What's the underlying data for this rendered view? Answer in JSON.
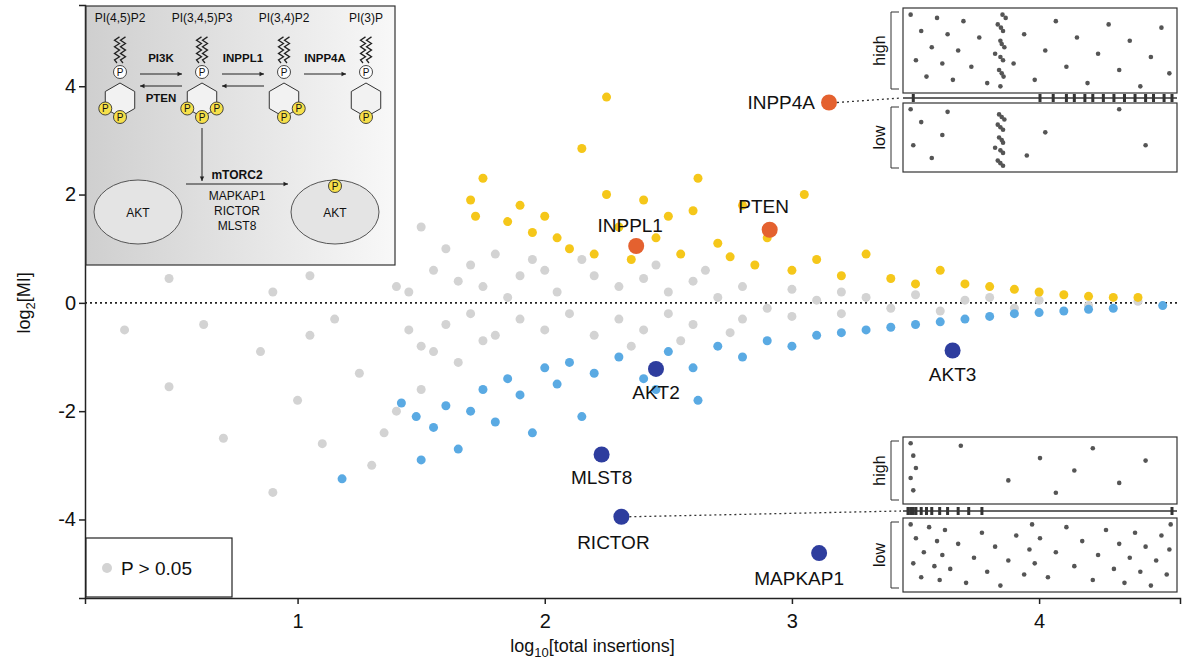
{
  "chart_data": {
    "type": "scatter",
    "x_title": [
      "log",
      "10",
      "[total insertions]"
    ],
    "y_title": [
      "log",
      "2",
      "[MI]"
    ],
    "xlim": [
      0.14,
      4.57
    ],
    "ylim": [
      -5.45,
      5.5
    ],
    "xticks": [
      1,
      2,
      3,
      4
    ],
    "yticks": [
      -4,
      -2,
      0,
      2,
      4
    ],
    "hlines": [
      0
    ],
    "legend": "bottom-left",
    "series": [
      {
        "name": "P > 0.05",
        "color": "#d3d3d3",
        "x": [
          0.3,
          0.48,
          0.48,
          0.62,
          0.7,
          0.85,
          0.9,
          1.0,
          1.05,
          1.1,
          1.15,
          1.25,
          1.3,
          1.4,
          1.45,
          1.5,
          1.5,
          1.5,
          1.55,
          1.6,
          1.6,
          1.65,
          1.7,
          1.7,
          1.75,
          1.8,
          1.8,
          1.85,
          1.9,
          1.9,
          2.0,
          2.0,
          2.05,
          2.1,
          2.2,
          2.2,
          2.3,
          2.3,
          2.4,
          2.4,
          2.5,
          2.5,
          2.6,
          2.6,
          2.7,
          2.8,
          2.8,
          2.9,
          3.0,
          3.0,
          3.1,
          3.2,
          3.2,
          3.3,
          3.4,
          3.5,
          3.6,
          3.7,
          3.8,
          3.9,
          4.0,
          4.2,
          4.4,
          1.45,
          1.55,
          1.65,
          1.75,
          1.95,
          2.15,
          2.35,
          2.45,
          2.55,
          2.65,
          2.75,
          1.05,
          0.9,
          1.35,
          1.4
        ],
        "values": [
          -0.5,
          0.45,
          -1.55,
          -0.4,
          -2.5,
          -0.9,
          -3.5,
          -1.8,
          0.5,
          -2.6,
          -0.3,
          -1.3,
          -3.0,
          -2.0,
          0.2,
          1.4,
          -0.8,
          -1.6,
          0.6,
          1.0,
          -0.4,
          -1.1,
          0.7,
          -0.2,
          0.3,
          -0.6,
          0.9,
          0.1,
          -0.3,
          0.5,
          0.6,
          -0.5,
          0.2,
          -0.2,
          0.5,
          -0.6,
          0.3,
          -0.3,
          0.45,
          -0.5,
          0.2,
          -0.2,
          0.4,
          -0.4,
          0.1,
          0.3,
          -0.3,
          -0.1,
          0.25,
          -0.25,
          0.05,
          0.2,
          -0.2,
          0.1,
          -0.1,
          0.15,
          -0.15,
          0.05,
          0.1,
          -0.1,
          0.05,
          -0.05,
          0.03,
          -0.5,
          -0.9,
          0.4,
          -0.7,
          0.8,
          0.8,
          -0.8,
          0.7,
          -0.7,
          0.6,
          -0.55,
          -0.6,
          0.2,
          -2.4,
          0.3
        ]
      },
      {
        "color": "#f5c71a",
        "x": [
          1.75,
          1.7,
          1.72,
          1.9,
          1.95,
          2.0,
          2.05,
          2.1,
          2.15,
          2.25,
          2.25,
          2.3,
          2.4,
          2.45,
          2.5,
          2.55,
          2.6,
          2.62,
          2.7,
          2.75,
          2.8,
          2.85,
          2.9,
          3.0,
          3.05,
          3.1,
          3.2,
          3.3,
          3.4,
          3.5,
          3.6,
          3.7,
          3.8,
          3.9,
          4.0,
          4.1,
          4.2,
          4.3,
          4.4,
          2.2,
          2.35,
          1.85
        ],
        "values": [
          2.3,
          1.9,
          1.6,
          1.8,
          1.3,
          1.6,
          1.2,
          1.0,
          2.85,
          2.0,
          3.8,
          1.4,
          1.9,
          1.2,
          1.6,
          0.9,
          1.7,
          2.3,
          1.1,
          0.85,
          1.8,
          0.7,
          1.2,
          0.6,
          2.0,
          0.8,
          0.5,
          0.9,
          0.45,
          0.35,
          0.6,
          0.35,
          0.3,
          0.25,
          0.2,
          0.15,
          0.12,
          0.1,
          0.1,
          0.9,
          0.8,
          1.5
        ]
      },
      {
        "color": "#5aaae3",
        "x": [
          1.18,
          1.5,
          1.55,
          1.6,
          1.65,
          1.7,
          1.75,
          1.8,
          1.85,
          1.9,
          1.95,
          2.0,
          2.05,
          2.1,
          2.2,
          2.3,
          2.4,
          2.5,
          2.6,
          2.62,
          2.7,
          2.8,
          2.9,
          3.0,
          3.1,
          3.2,
          3.3,
          3.4,
          3.5,
          3.6,
          3.7,
          3.8,
          3.9,
          4.0,
          4.1,
          4.2,
          4.3,
          4.5,
          1.48,
          1.42,
          2.15,
          2.45
        ],
        "values": [
          -3.25,
          -2.9,
          -2.3,
          -1.9,
          -2.7,
          -2.0,
          -1.6,
          -2.2,
          -1.4,
          -1.7,
          -2.4,
          -1.2,
          -1.5,
          -1.1,
          -1.3,
          -1.0,
          -1.4,
          -0.9,
          -1.2,
          -1.8,
          -0.8,
          -1.0,
          -0.7,
          -0.8,
          -0.6,
          -0.55,
          -0.5,
          -0.45,
          -0.4,
          -0.35,
          -0.3,
          -0.25,
          -0.2,
          -0.18,
          -0.15,
          -0.12,
          -0.1,
          -0.05,
          -2.1,
          -1.85,
          -2.1,
          -1.6
        ]
      }
    ],
    "annotations": [
      {
        "text": "INPP4A",
        "x": 3.15,
        "y": 3.7,
        "color": "#e4612f"
      },
      {
        "text": "INPPL1",
        "x": 2.37,
        "y": 1.05,
        "color": "#e4612f"
      },
      {
        "text": "PTEN",
        "x": 2.91,
        "y": 1.35,
        "color": "#e4612f"
      },
      {
        "text": "AKT2",
        "x": 2.45,
        "y": -1.22,
        "color": "#2e3d9e"
      },
      {
        "text": "AKT3",
        "x": 3.65,
        "y": -0.88,
        "color": "#2e3d9e"
      },
      {
        "text": "MLST8",
        "x": 2.23,
        "y": -2.8,
        "color": "#2e3d9e"
      },
      {
        "text": "RICTOR",
        "x": 2.31,
        "y": -3.95,
        "color": "#2e3d9e"
      },
      {
        "text": "MAPKAP1",
        "x": 3.11,
        "y": -4.62,
        "color": "#2e3d9e"
      }
    ]
  },
  "pathway": {
    "lipids": [
      "PI(4,5)P2",
      "PI(3,4,5)P3",
      "PI(3,4)P2",
      "PI(3)P"
    ],
    "forward": [
      "PI3K",
      "INPPL1",
      "INPP4A"
    ],
    "reverse": "PTEN",
    "complex": "mTORC2",
    "components": [
      "MAPKAP1",
      "RICTOR",
      "MLST8"
    ],
    "protein": "AKT",
    "phospho": "P"
  },
  "track_labels": [
    "high",
    "low"
  ],
  "tracks": [
    {
      "high": [
        0.01,
        0.03,
        0.05,
        0.07,
        0.09,
        0.11,
        0.13,
        0.15,
        0.17,
        0.19,
        0.21,
        0.24,
        0.27,
        0.3,
        0.33,
        0.34,
        0.345,
        0.35,
        0.35,
        0.35,
        0.352,
        0.355,
        0.355,
        0.358,
        0.36,
        0.36,
        0.362,
        0.365,
        0.37,
        0.4,
        0.44,
        0.48,
        0.52,
        0.56,
        0.6,
        0.64,
        0.68,
        0.72,
        0.76,
        0.8,
        0.84,
        0.88,
        0.92,
        0.96,
        0.99
      ],
      "low": [
        0.01,
        0.02,
        0.05,
        0.09,
        0.13,
        0.15,
        0.33,
        0.34,
        0.34,
        0.345,
        0.345,
        0.35,
        0.35,
        0.35,
        0.355,
        0.355,
        0.36,
        0.36,
        0.36,
        0.36,
        0.365,
        0.45,
        0.52,
        0.8,
        0.9
      ],
      "exons": [
        0.02,
        0.5,
        0.55,
        0.6,
        0.63,
        0.67,
        0.7,
        0.74,
        0.78,
        0.82,
        0.86,
        0.9,
        0.93,
        0.97,
        1.0
      ]
    },
    {
      "high": [
        0.01,
        0.01,
        0.02,
        0.02,
        0.03,
        0.2,
        0.38,
        0.5,
        0.56,
        0.63,
        0.7,
        0.8,
        0.9
      ],
      "low": [
        0.01,
        0.02,
        0.03,
        0.05,
        0.06,
        0.08,
        0.1,
        0.11,
        0.12,
        0.13,
        0.14,
        0.16,
        0.19,
        0.22,
        0.25,
        0.28,
        0.3,
        0.33,
        0.35,
        0.38,
        0.41,
        0.44,
        0.46,
        0.47,
        0.48,
        0.5,
        0.53,
        0.56,
        0.6,
        0.63,
        0.66,
        0.7,
        0.72,
        0.75,
        0.78,
        0.8,
        0.82,
        0.84,
        0.86,
        0.88,
        0.9,
        0.92,
        0.94,
        0.96,
        0.98,
        0.99,
        0.995
      ],
      "exons": [
        0.0,
        0.01,
        0.02,
        0.03,
        0.05,
        0.07,
        0.09,
        0.12,
        0.15,
        0.19,
        0.23,
        0.28,
        1.0
      ]
    }
  ]
}
